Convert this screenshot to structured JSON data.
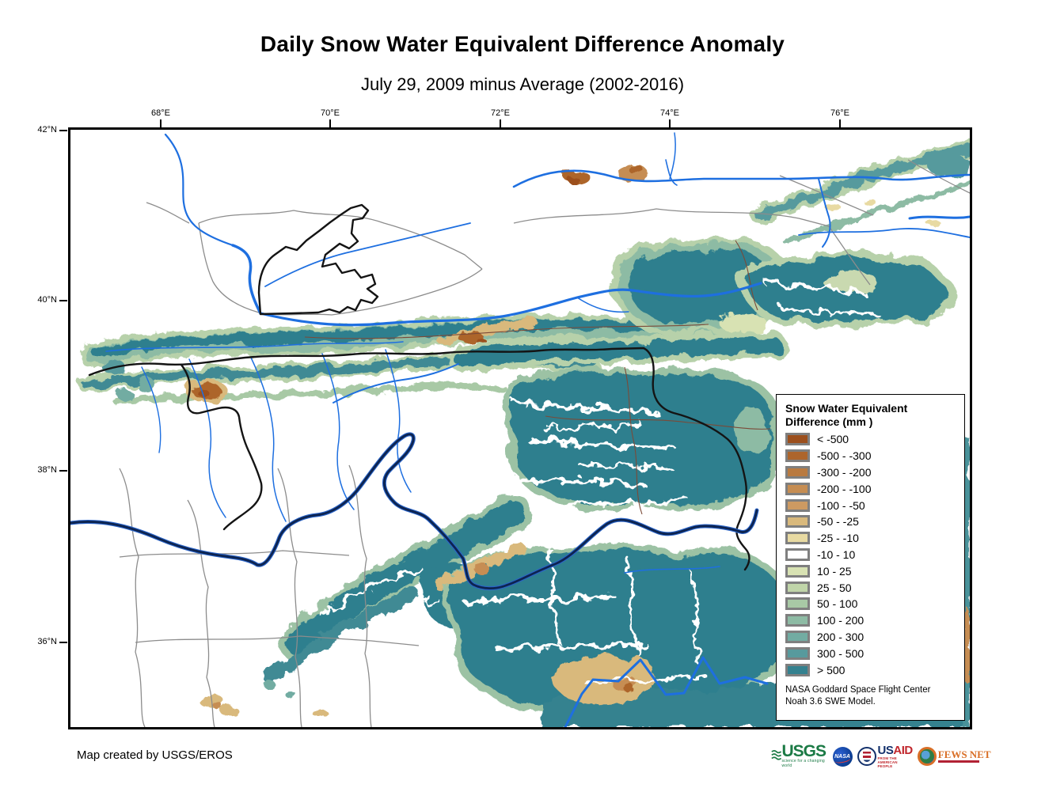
{
  "title": "Daily Snow Water Equivalent Difference Anomaly",
  "subtitle": "July 29, 2009 minus Average (2002-2016)",
  "map": {
    "x_axis_ticks": [
      "68°E",
      "70°E",
      "72°E",
      "74°E",
      "76°E"
    ],
    "y_axis_ticks": [
      "42°N",
      "40°N",
      "38°N",
      "36°N"
    ]
  },
  "legend": {
    "title_line1": "Snow Water Equivalent",
    "title_line2": "Difference (mm )",
    "classes": [
      {
        "label": "< -500",
        "color": "#9c4f1d"
      },
      {
        "label": "-500 - -300",
        "color": "#ad652c"
      },
      {
        "label": "-300 - -200",
        "color": "#b97a40"
      },
      {
        "label": "-200 - -100",
        "color": "#c68d52"
      },
      {
        "label": "-100 - -50",
        "color": "#cd9a62"
      },
      {
        "label": "-50 - -25",
        "color": "#d9b97c"
      },
      {
        "label": "-25 - -10",
        "color": "#e8daa2"
      },
      {
        "label": "-10 - 10",
        "color": "#ffffff"
      },
      {
        "label": "10 - 25",
        "color": "#d8e2b3"
      },
      {
        "label": "25 - 50",
        "color": "#c0d5a9"
      },
      {
        "label": "50 - 100",
        "color": "#a8c9a5"
      },
      {
        "label": "100 - 200",
        "color": "#8dbba4"
      },
      {
        "label": "200 - 300",
        "color": "#72aca2"
      },
      {
        "label": "300 - 500",
        "color": "#579a9d"
      },
      {
        "label": "> 500",
        "color": "#34818f"
      }
    ],
    "source_line1": "NASA Goddard Space Flight Center",
    "source_line2": "Noah 3.6 SWE Model."
  },
  "footer": {
    "credit": "Map created by USGS/EROS"
  },
  "logos": {
    "usgs": {
      "acronym": "USGS",
      "tagline": "science for a changing world"
    },
    "nasa": {
      "acronym": "NASA"
    },
    "usaid": {
      "part1": "US",
      "part2": "AID",
      "tagline": "FROM THE AMERICAN PEOPLE"
    },
    "fewsnet": {
      "name": "FEWS NET"
    }
  }
}
